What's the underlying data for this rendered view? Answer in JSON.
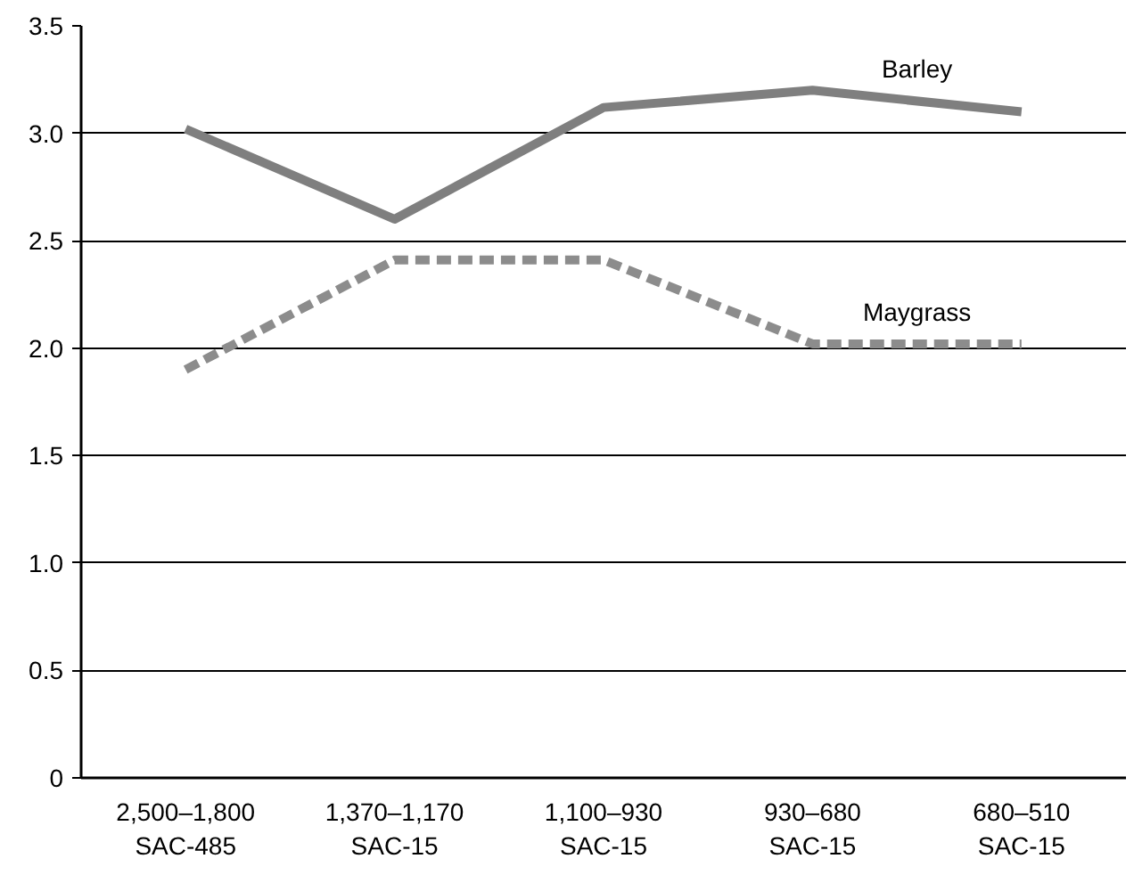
{
  "chart_data": {
    "type": "line",
    "categories": [
      "2,500–1,800\nSAC-485",
      "1,370–1,170\nSAC-15",
      "1,100–930\nSAC-15",
      "930–680\nSAC-15",
      "680–510\nSAC-15"
    ],
    "series": [
      {
        "name": "Barley",
        "color": "#7f7f7f",
        "line_style": "solid",
        "values": [
          3.02,
          2.6,
          3.12,
          3.2,
          3.1
        ]
      },
      {
        "name": "Maygrass",
        "color": "#8c8c8c",
        "line_style": "dashed",
        "values": [
          1.9,
          2.41,
          2.41,
          2.02,
          2.02
        ]
      }
    ],
    "ylim": [
      0,
      3.5
    ],
    "yticks": [
      0,
      {
        "value": 0.5,
        "label": "0.5"
      },
      {
        "value": 1,
        "label": "1.0"
      },
      {
        "value": 1.5,
        "label": "1.5"
      },
      {
        "value": 2,
        "label": "2.0"
      },
      {
        "value": 2.5,
        "label": "2.5"
      },
      {
        "value": 3,
        "label": "3.0"
      },
      {
        "value": 3.5,
        "label": "3.5"
      }
    ],
    "grid": "y",
    "marker": "none"
  }
}
